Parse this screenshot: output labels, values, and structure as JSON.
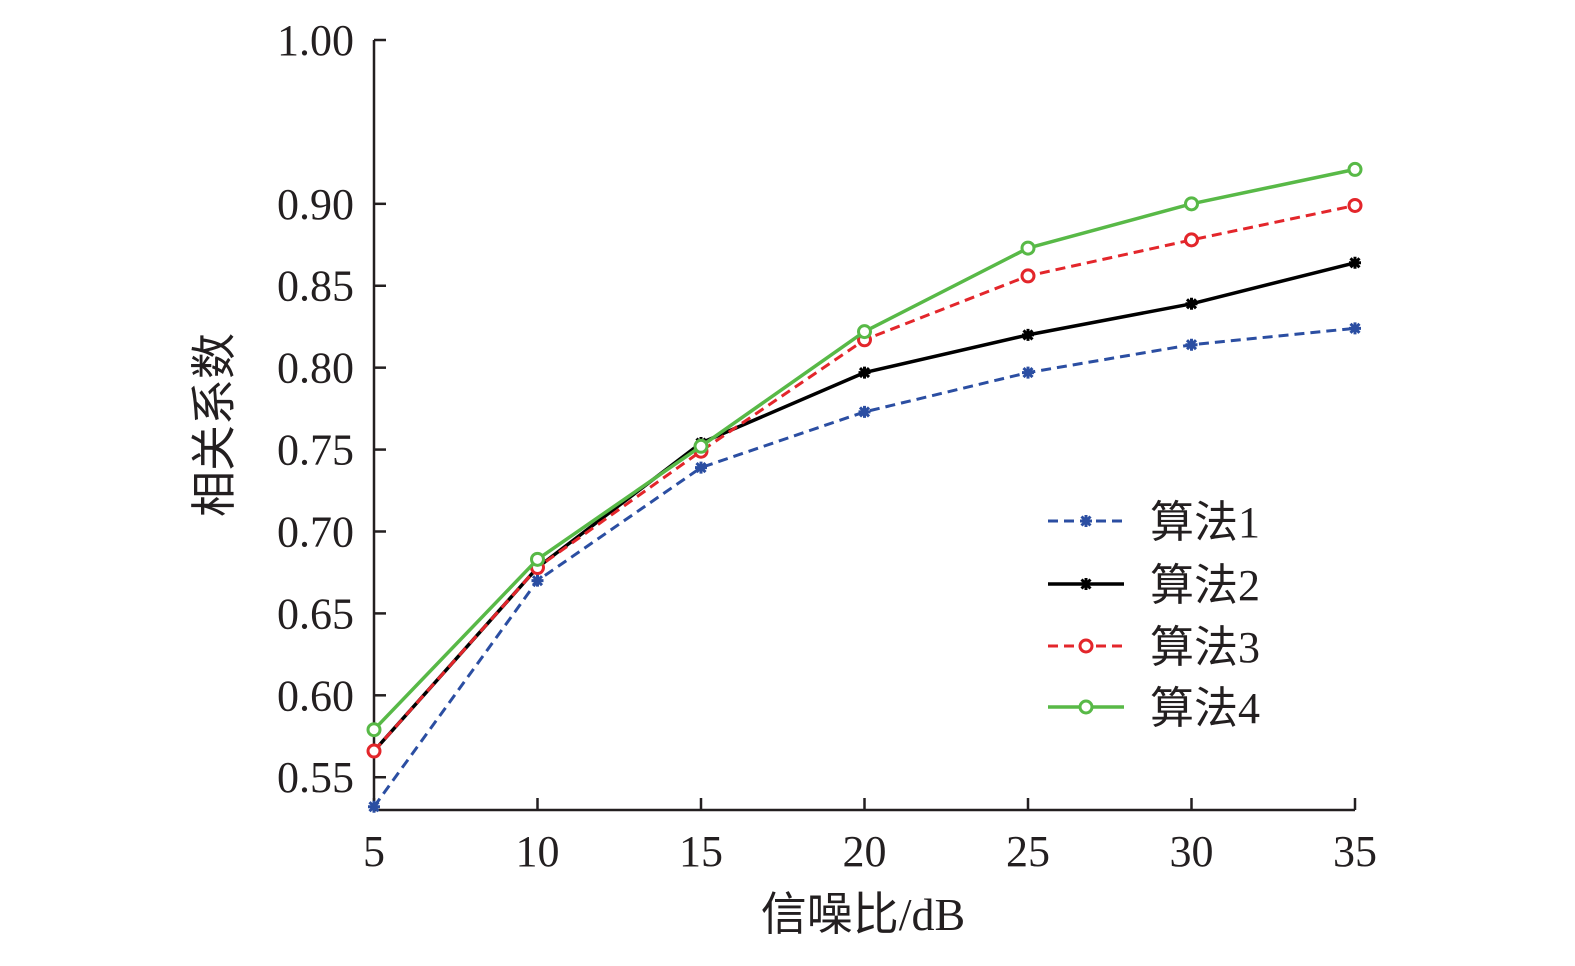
{
  "chart_data": {
    "type": "line",
    "title": "",
    "xlabel": "信噪比/dB",
    "ylabel": "相关系数",
    "x": [
      5,
      10,
      15,
      20,
      25,
      30,
      35
    ],
    "xlim": [
      5,
      35
    ],
    "ylim": [
      0.53,
      1.0
    ],
    "xticks": [
      5,
      10,
      15,
      20,
      25,
      30,
      35
    ],
    "xtick_labels": [
      "5",
      "10",
      "15",
      "20",
      "25",
      "30",
      "35"
    ],
    "yticks": [
      0.55,
      0.6,
      0.65,
      0.7,
      0.75,
      0.8,
      0.85,
      0.9,
      1.0
    ],
    "ytick_labels": [
      "0.55",
      "0.60",
      "0.65",
      "0.70",
      "0.75",
      "0.80",
      "0.85",
      "0.90",
      "1.00"
    ],
    "grid": false,
    "legend_position": "lower-right",
    "series": [
      {
        "name": "算法1",
        "values": [
          0.532,
          0.67,
          0.739,
          0.773,
          0.797,
          0.814,
          0.824
        ],
        "color": "#2b4ea2",
        "dash": "dashed",
        "marker": "star"
      },
      {
        "name": "算法2",
        "values": [
          0.566,
          0.678,
          0.754,
          0.797,
          0.82,
          0.839,
          0.864
        ],
        "color": "#000000",
        "dash": "solid",
        "marker": "star"
      },
      {
        "name": "算法3",
        "values": [
          0.566,
          0.678,
          0.749,
          0.817,
          0.856,
          0.878,
          0.899
        ],
        "color": "#e3262b",
        "dash": "dashed",
        "marker": "circle"
      },
      {
        "name": "算法4",
        "values": [
          0.579,
          0.683,
          0.752,
          0.822,
          0.873,
          0.9,
          0.921
        ],
        "color": "#58b947",
        "dash": "solid",
        "marker": "circle"
      }
    ]
  }
}
